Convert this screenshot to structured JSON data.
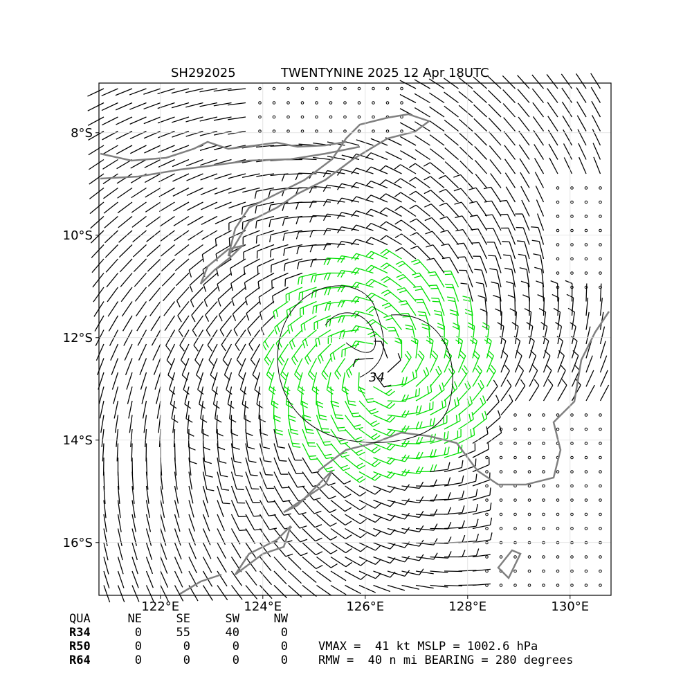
{
  "header": {
    "storm_id": "SH292025",
    "title": "TWENTYNINE 2025 12 Apr 18UTC"
  },
  "map": {
    "lon_range": [
      120.8,
      130.8
    ],
    "lat_range": [
      -7.03,
      -17.03
    ],
    "xticks": [
      {
        "value": 122,
        "label": "122°E"
      },
      {
        "value": 124,
        "label": "124°E"
      },
      {
        "value": 126,
        "label": "126°E"
      },
      {
        "value": 128,
        "label": "128°E"
      },
      {
        "value": 130,
        "label": "130°E"
      }
    ],
    "yticks": [
      {
        "value": -8,
        "label": "8°S"
      },
      {
        "value": -10,
        "label": "10°S"
      },
      {
        "value": -12,
        "label": "12°S"
      },
      {
        "value": -14,
        "label": "14°S"
      },
      {
        "value": -16,
        "label": "16°S"
      }
    ],
    "contour_label": "34"
  },
  "table": {
    "header": [
      "QUA",
      "NE",
      "SE",
      "SW",
      "NW"
    ],
    "rows": [
      [
        "R34",
        0,
        55,
        40,
        0
      ],
      [
        "R50",
        0,
        0,
        0,
        0
      ],
      [
        "R64",
        0,
        0,
        0,
        0
      ]
    ]
  },
  "stats": [
    "VMAX =  41 kt MSLP = 1002.6 hPa",
    "RMW =  40 n mi BEARING = 280 degrees"
  ]
}
